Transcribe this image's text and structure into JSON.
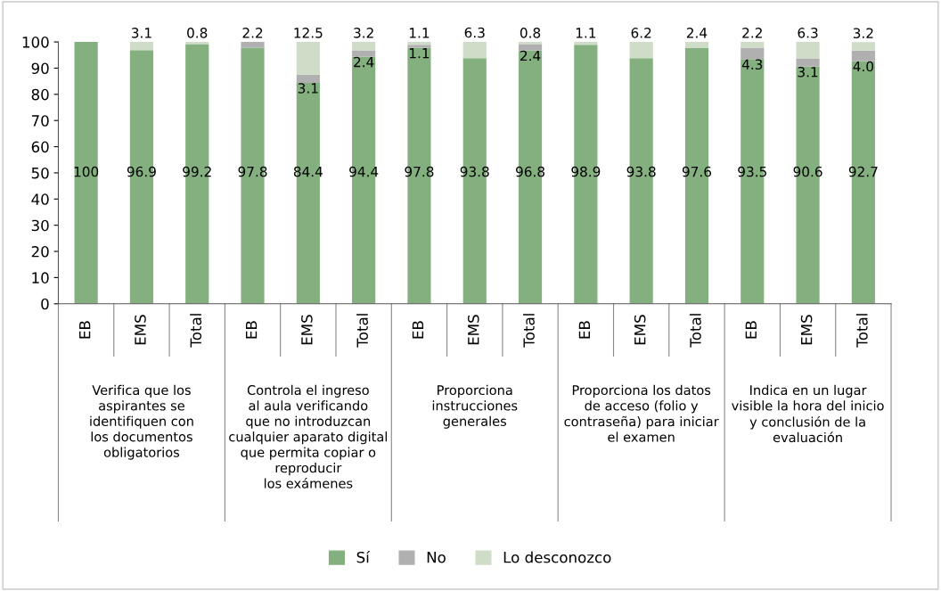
{
  "chart_data": {
    "type": "bar",
    "stacked": true,
    "categories": [
      "EB",
      "EMS",
      "Total",
      "EB",
      "EMS",
      "Total",
      "EB",
      "EMS",
      "Total",
      "EB",
      "EMS",
      "Total",
      "EB",
      "EMS",
      "Total"
    ],
    "series": [
      {
        "name": "Sí",
        "color": "#84b07f",
        "values": [
          100,
          96.9,
          99.2,
          97.8,
          84.4,
          94.4,
          97.8,
          93.8,
          96.8,
          98.9,
          93.8,
          97.6,
          93.5,
          90.6,
          92.7
        ],
        "value_labels": [
          "100",
          "96.9",
          "99.2",
          "97.8",
          "84.4",
          "94.4",
          "97.8",
          "93.8",
          "96.8",
          "98.9",
          "93.8",
          "97.6",
          "93.5",
          "90.6",
          "92.7"
        ]
      },
      {
        "name": "No",
        "color": "#b0b0b0",
        "values": [
          0,
          0,
          0,
          2.2,
          3.1,
          2.4,
          1.1,
          0,
          2.4,
          0,
          0,
          0,
          4.3,
          3.1,
          4.0
        ],
        "value_labels": [
          null,
          null,
          null,
          "2.2",
          "3.1",
          "2.4",
          "1.1",
          null,
          "2.4",
          null,
          null,
          null,
          "4.3",
          "3.1",
          "4.0"
        ]
      },
      {
        "name": "Lo desconozco",
        "color": "#cfdcc7",
        "values": [
          0,
          3.1,
          0.8,
          0,
          12.5,
          3.2,
          1.1,
          6.3,
          0.8,
          1.1,
          6.2,
          2.4,
          2.2,
          6.3,
          3.2
        ],
        "value_labels": [
          null,
          "3.1",
          "0.8",
          null,
          "12.5",
          "3.2",
          "1.1",
          "6.3",
          "0.8",
          "1.1",
          "6.2",
          "2.4",
          "2.2",
          "6.3",
          "3.2"
        ]
      }
    ],
    "ylim": [
      0,
      100
    ],
    "yticks": [
      0,
      10,
      20,
      30,
      40,
      50,
      60,
      70,
      80,
      90,
      100
    ],
    "annotations": [
      "Verifica que los\naspirantes se\nidentifiquen con\nlos documentos\nobligatorios",
      "Controla el ingreso\nal aula verificando\nque no introduzcan\ncualquier aparato digital\nque permita copiar o\nreproducir\nlos exámenes",
      "Proporciona\ninstrucciones\ngenerales",
      "Proporciona los datos\nde acceso (folio y\ncontraseña) para iniciar\nel examen",
      "Indica en un lugar\nvisible la hora del inicio\ny conclusión de la\nevaluación"
    ],
    "grid": false,
    "legend": "bottom"
  }
}
